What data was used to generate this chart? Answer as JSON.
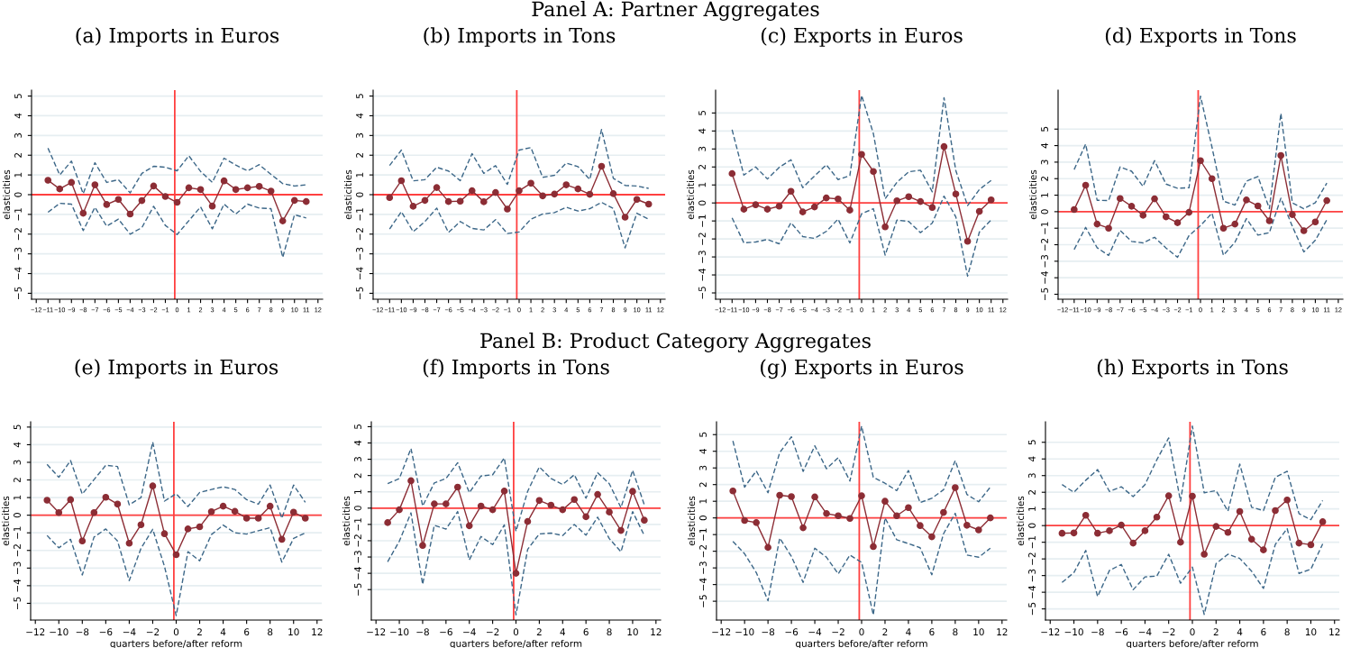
{
  "chart_data": [
    {
      "type": "line",
      "title": "(a) Imports in Euros",
      "ylabel": "elasticities",
      "annotations": [
        "Panel A: Partner Aggregates"
      ],
      "x": [
        -11,
        -10,
        -9,
        -8,
        -7,
        -6,
        -5,
        -4,
        -3,
        -2,
        -1,
        0,
        1,
        2,
        3,
        4,
        5,
        6,
        7,
        8,
        9,
        10,
        11
      ],
      "xlim": [
        -12.4,
        12.4
      ],
      "ylim": [
        -5.3,
        5.3
      ],
      "xticks": [
        -12,
        -11,
        -10,
        -9,
        -8,
        -7,
        -6,
        -5,
        -4,
        -3,
        -2,
        -1,
        0,
        1,
        2,
        3,
        4,
        5,
        6,
        7,
        8,
        9,
        10,
        11,
        12
      ],
      "yticks": [
        -5,
        -4,
        -3,
        -2,
        -1,
        0,
        1,
        2,
        3,
        4,
        5
      ],
      "grid": "y",
      "legend": false,
      "ref_lines": [
        {
          "axis": "x",
          "value": -0.2,
          "color": "#ff4040"
        },
        {
          "axis": "y",
          "value": 0,
          "color": "#ff4040"
        }
      ],
      "series": [
        {
          "color": "#3c6788",
          "line_style": "dashed",
          "marker": "none",
          "values": [
            2.36,
            1.0,
            1.7,
            0.05,
            1.62,
            0.62,
            0.76,
            0.09,
            1.08,
            1.44,
            1.39,
            1.21,
            1.97,
            1.18,
            0.62,
            1.85,
            1.5,
            1.21,
            1.52,
            1.03,
            0.56,
            0.44,
            0.5
          ]
        },
        {
          "color": "#3c6788",
          "line_style": "dashed",
          "marker": "none",
          "values": [
            -0.89,
            -0.44,
            -0.48,
            -1.82,
            -0.64,
            -1.6,
            -1.24,
            -2.0,
            -1.67,
            -0.59,
            -1.56,
            -2.02,
            -1.32,
            -0.62,
            -1.73,
            -0.48,
            -0.98,
            -0.48,
            -0.68,
            -0.71,
            -3.18,
            -1.02,
            -1.18
          ]
        },
        {
          "color": "#8c2d35",
          "line_style": "solid",
          "marker": "circle",
          "values": [
            0.73,
            0.29,
            0.62,
            -0.94,
            0.5,
            -0.5,
            -0.24,
            -0.98,
            -0.3,
            0.44,
            -0.09,
            -0.39,
            0.35,
            0.26,
            -0.58,
            0.7,
            0.26,
            0.35,
            0.42,
            0.18,
            -1.33,
            -0.29,
            -0.35
          ]
        }
      ]
    },
    {
      "type": "line",
      "title": "(b) Imports in Tons",
      "ylabel": "elasticities",
      "x": [
        -11,
        -10,
        -9,
        -8,
        -7,
        -6,
        -5,
        -4,
        -3,
        -2,
        -1,
        0,
        1,
        2,
        3,
        4,
        5,
        6,
        7,
        8,
        9,
        10,
        11
      ],
      "xlim": [
        -12.4,
        12.4
      ],
      "ylim": [
        -5.3,
        5.3
      ],
      "xticks": [
        -12,
        -11,
        -10,
        -9,
        -8,
        -7,
        -6,
        -5,
        -4,
        -3,
        -2,
        -1,
        0,
        1,
        2,
        3,
        4,
        5,
        6,
        7,
        8,
        9,
        10,
        11,
        12
      ],
      "yticks": [
        -5,
        -4,
        -3,
        -2,
        -1,
        0,
        1,
        2,
        3,
        4,
        5
      ],
      "grid": "y",
      "legend": false,
      "ref_lines": [
        {
          "axis": "x",
          "value": -0.2,
          "color": "#ff4040"
        },
        {
          "axis": "y",
          "value": 0,
          "color": "#ff4040"
        }
      ],
      "series": [
        {
          "color": "#3c6788",
          "line_style": "dashed",
          "marker": "none",
          "values": [
            1.48,
            2.26,
            0.7,
            0.76,
            1.39,
            1.2,
            0.71,
            2.08,
            1.08,
            1.47,
            0.52,
            2.26,
            2.39,
            0.88,
            0.98,
            1.6,
            1.42,
            0.77,
            3.3,
            0.83,
            0.47,
            0.44,
            0.32
          ]
        },
        {
          "color": "#3c6788",
          "line_style": "dashed",
          "marker": "none",
          "values": [
            -1.74,
            -0.86,
            -1.88,
            -1.36,
            -0.68,
            -1.92,
            -1.36,
            -1.71,
            -1.79,
            -1.27,
            -1.97,
            -1.89,
            -1.24,
            -0.98,
            -0.91,
            -0.64,
            -0.83,
            -0.71,
            -0.39,
            -0.7,
            -2.7,
            -0.94,
            -1.24
          ]
        },
        {
          "color": "#8c2d35",
          "line_style": "solid",
          "marker": "circle",
          "values": [
            -0.15,
            0.71,
            -0.59,
            -0.29,
            0.36,
            -0.35,
            -0.33,
            0.2,
            -0.36,
            0.11,
            -0.73,
            0.2,
            0.58,
            -0.06,
            0.03,
            0.5,
            0.29,
            0.02,
            1.44,
            0.05,
            -1.14,
            -0.24,
            -0.48
          ]
        }
      ]
    },
    {
      "type": "line",
      "title": "(c) Exports in Euros",
      "ylabel": "elasticities",
      "x": [
        -11,
        -10,
        -9,
        -8,
        -7,
        -6,
        -5,
        -4,
        -3,
        -2,
        -1,
        0,
        1,
        2,
        3,
        4,
        5,
        6,
        7,
        8,
        9,
        10,
        11
      ],
      "xlim": [
        -12.4,
        12.4
      ],
      "ylim": [
        -5.35,
        6.27
      ],
      "xticks": [
        -12,
        -11,
        -10,
        -9,
        -8,
        -7,
        -6,
        -5,
        -4,
        -3,
        -2,
        -1,
        0,
        1,
        2,
        3,
        4,
        5,
        6,
        7,
        8,
        9,
        10,
        11,
        12
      ],
      "yticks": [
        -5,
        -4,
        -3,
        -2,
        -1,
        0,
        1,
        2,
        3,
        4,
        5
      ],
      "grid": "y",
      "legend": false,
      "ref_lines": [
        {
          "axis": "x",
          "value": -0.2,
          "color": "#ff4040"
        },
        {
          "axis": "y",
          "value": 0,
          "color": "#ff4040"
        }
      ],
      "series": [
        {
          "color": "#3c6788",
          "line_style": "dashed",
          "marker": "none",
          "values": [
            4.07,
            1.55,
            2.0,
            1.33,
            1.98,
            2.4,
            0.85,
            1.5,
            2.12,
            1.3,
            1.52,
            5.98,
            3.85,
            0.23,
            1.15,
            1.73,
            1.82,
            0.62,
            5.85,
            1.8,
            -0.15,
            0.75,
            1.25
          ]
        },
        {
          "color": "#3c6788",
          "line_style": "dashed",
          "marker": "none",
          "values": [
            -0.83,
            -2.22,
            -2.17,
            -2.03,
            -2.27,
            -1.1,
            -1.87,
            -1.97,
            -1.58,
            -0.9,
            -2.22,
            -0.6,
            -0.32,
            -2.9,
            -0.95,
            -1.03,
            -1.65,
            -1.12,
            0.38,
            -0.77,
            -4.07,
            -1.62,
            -0.95
          ]
        },
        {
          "color": "#8c2d35",
          "line_style": "solid",
          "marker": "circle",
          "values": [
            1.63,
            -0.35,
            -0.1,
            -0.35,
            -0.18,
            0.65,
            -0.5,
            -0.22,
            0.28,
            0.22,
            -0.4,
            2.7,
            1.75,
            -1.33,
            0.12,
            0.35,
            0.08,
            -0.25,
            3.13,
            0.5,
            -2.13,
            -0.47,
            0.17
          ]
        }
      ]
    },
    {
      "type": "line",
      "title": "(d) Exports in Tons",
      "ylabel": "elasticities",
      "x": [
        -11,
        -10,
        -9,
        -8,
        -7,
        -6,
        -5,
        -4,
        -3,
        -2,
        -1,
        0,
        1,
        2,
        3,
        4,
        5,
        6,
        7,
        8,
        9,
        10,
        11
      ],
      "xlim": [
        -12.4,
        12.4
      ],
      "ylim": [
        -5.3,
        7.36
      ],
      "xticks": [
        -12,
        -11,
        -10,
        -9,
        -8,
        -7,
        -6,
        -5,
        -4,
        -3,
        -2,
        -1,
        0,
        1,
        2,
        3,
        4,
        5,
        6,
        7,
        8,
        9,
        10,
        11,
        12
      ],
      "yticks": [
        -5,
        -4,
        -3,
        -2,
        -1,
        0,
        1,
        2,
        3,
        4,
        5
      ],
      "grid": "y",
      "legend": false,
      "ref_lines": [
        {
          "axis": "x",
          "value": -0.2,
          "color": "#ff4040"
        },
        {
          "axis": "y",
          "value": 0,
          "color": "#ff4040"
        }
      ],
      "series": [
        {
          "color": "#3c6788",
          "line_style": "dashed",
          "marker": "none",
          "values": [
            2.55,
            4.09,
            0.69,
            0.67,
            2.71,
            2.45,
            1.53,
            3.09,
            1.67,
            1.42,
            1.45,
            7.0,
            3.91,
            0.64,
            0.4,
            1.85,
            2.13,
            0.18,
            5.95,
            0.53,
            0.18,
            0.55,
            1.73
          ]
        },
        {
          "color": "#3c6788",
          "line_style": "dashed",
          "marker": "none",
          "values": [
            -2.29,
            -0.95,
            -2.18,
            -2.65,
            -1.13,
            -1.8,
            -1.89,
            -1.55,
            -2.2,
            -2.76,
            -1.45,
            -0.84,
            -0.09,
            -2.64,
            -1.85,
            -0.42,
            -1.42,
            -1.27,
            0.82,
            -0.89,
            -2.44,
            -1.73,
            -0.49
          ]
        },
        {
          "color": "#8c2d35",
          "line_style": "solid",
          "marker": "circle",
          "values": [
            0.13,
            1.6,
            -0.75,
            -1.0,
            0.8,
            0.33,
            -0.22,
            0.78,
            -0.31,
            -0.67,
            -0.04,
            3.09,
            2.0,
            -1.0,
            -0.75,
            0.71,
            0.35,
            -0.55,
            3.4,
            -0.18,
            -1.15,
            -0.62,
            0.67
          ]
        }
      ]
    },
    {
      "type": "line",
      "title": "(e) Imports in Euros",
      "xlabel": "quarters before/after reform",
      "ylabel": "elasticities",
      "annotations": [
        "Panel B: Product Category Aggregates"
      ],
      "x": [
        -11,
        -10,
        -9,
        -8,
        -7,
        -6,
        -5,
        -4,
        -3,
        -2,
        -1,
        0,
        1,
        2,
        3,
        4,
        5,
        6,
        7,
        8,
        9,
        10,
        11
      ],
      "xlim": [
        -12.4,
        12.4
      ],
      "ylim": [
        -5.95,
        5.3
      ],
      "xticks": [
        -12,
        -10,
        -8,
        -6,
        -4,
        -2,
        0,
        2,
        4,
        6,
        8,
        10,
        12
      ],
      "yticks": [
        -5,
        -4,
        -3,
        -2,
        -1,
        0,
        1,
        2,
        3,
        4,
        5
      ],
      "grid": "y",
      "legend": false,
      "ref_lines": [
        {
          "axis": "x",
          "value": -0.2,
          "color": "#ff4040"
        },
        {
          "axis": "y",
          "value": 0,
          "color": "#ff4040"
        }
      ],
      "series": [
        {
          "color": "#3c6788",
          "line_style": "dashed",
          "marker": "none",
          "values": [
            2.88,
            2.15,
            3.1,
            1.2,
            2.02,
            2.83,
            2.76,
            0.59,
            1.0,
            4.15,
            0.8,
            1.22,
            0.49,
            1.29,
            1.46,
            1.61,
            1.46,
            0.88,
            0.63,
            1.71,
            -0.17,
            1.71,
            0.73
          ]
        },
        {
          "color": "#3c6788",
          "line_style": "dashed",
          "marker": "none",
          "values": [
            -1.15,
            -1.85,
            -1.37,
            -3.39,
            -1.24,
            -0.78,
            -1.46,
            -3.71,
            -1.88,
            -0.8,
            -2.9,
            -5.7,
            -2.07,
            -2.59,
            -1.1,
            -0.56,
            -1.0,
            -1.07,
            -0.88,
            -0.71,
            -2.66,
            -1.32,
            -1.0
          ]
        },
        {
          "color": "#8c2d35",
          "line_style": "solid",
          "marker": "circle",
          "values": [
            0.85,
            0.15,
            0.88,
            -1.46,
            0.15,
            1.02,
            0.63,
            -1.59,
            -0.54,
            1.66,
            -1.05,
            -2.24,
            -0.78,
            -0.66,
            0.2,
            0.51,
            0.22,
            -0.17,
            -0.17,
            0.51,
            -1.37,
            0.17,
            -0.17
          ]
        }
      ]
    },
    {
      "type": "line",
      "title": "(f) Imports in Tons",
      "xlabel": "quarters before/after reform",
      "ylabel": "elasticities",
      "x": [
        -11,
        -10,
        -9,
        -8,
        -7,
        -6,
        -5,
        -4,
        -3,
        -2,
        -1,
        0,
        1,
        2,
        3,
        4,
        5,
        6,
        7,
        8,
        9,
        10,
        11
      ],
      "xlim": [
        -12.4,
        12.4
      ],
      "ylim": [
        -6.87,
        5.3
      ],
      "xticks": [
        -12,
        -10,
        -8,
        -6,
        -4,
        -2,
        0,
        2,
        4,
        6,
        8,
        10,
        12
      ],
      "yticks": [
        -5,
        -4,
        -3,
        -2,
        -1,
        0,
        1,
        2,
        3,
        4,
        5
      ],
      "grid": "y",
      "legend": false,
      "ref_lines": [
        {
          "axis": "x",
          "value": -0.2,
          "color": "#ff4040"
        },
        {
          "axis": "y",
          "value": 0,
          "color": "#ff4040"
        }
      ],
      "series": [
        {
          "color": "#3c6788",
          "line_style": "dashed",
          "marker": "none",
          "values": [
            1.5,
            1.82,
            3.66,
            0.13,
            1.55,
            1.82,
            2.79,
            0.95,
            1.97,
            2.05,
            3.08,
            -1.42,
            1.03,
            2.53,
            1.82,
            1.45,
            2.05,
            0.61,
            2.18,
            1.5,
            0.03,
            2.32,
            0.21
          ]
        },
        {
          "color": "#3c6788",
          "line_style": "dashed",
          "marker": "none",
          "values": [
            -3.29,
            -2.03,
            -0.29,
            -4.68,
            -1.05,
            -1.29,
            -0.21,
            -3.18,
            -1.74,
            -2.24,
            -1.03,
            -6.55,
            -2.53,
            -1.58,
            -1.53,
            -1.68,
            -1.0,
            -1.66,
            -0.55,
            -1.87,
            -2.68,
            -0.21,
            -1.68
          ]
        },
        {
          "color": "#8c2d35",
          "line_style": "solid",
          "marker": "circle",
          "values": [
            -0.89,
            -0.1,
            1.68,
            -2.29,
            0.26,
            0.26,
            1.29,
            -1.08,
            0.13,
            -0.1,
            1.05,
            -4.0,
            -0.82,
            0.47,
            0.18,
            -0.1,
            0.53,
            -0.53,
            0.84,
            -0.24,
            -1.37,
            1.03,
            -0.74
          ]
        }
      ]
    },
    {
      "type": "line",
      "title": "(g) Exports in Euros",
      "xlabel": "quarters before/after reform",
      "ylabel": "elasticities",
      "x": [
        -11,
        -10,
        -9,
        -8,
        -7,
        -6,
        -5,
        -4,
        -3,
        -2,
        -1,
        0,
        1,
        2,
        3,
        4,
        5,
        6,
        7,
        8,
        9,
        10,
        11
      ],
      "xlim": [
        -12.4,
        12.4
      ],
      "ylim": [
        -6.13,
        5.77
      ],
      "xticks": [
        -12,
        -10,
        -8,
        -6,
        -4,
        -2,
        0,
        2,
        4,
        6,
        8,
        10,
        12
      ],
      "yticks": [
        -5,
        -4,
        -3,
        -2,
        -1,
        0,
        1,
        2,
        3,
        4,
        5
      ],
      "grid": "y",
      "legend": false,
      "ref_lines": [
        {
          "axis": "x",
          "value": -0.2,
          "color": "#ff4040"
        },
        {
          "axis": "y",
          "value": 0,
          "color": "#ff4040"
        }
      ],
      "series": [
        {
          "color": "#3c6788",
          "line_style": "dashed",
          "marker": "none",
          "values": [
            4.62,
            1.85,
            2.82,
            1.51,
            3.92,
            4.87,
            2.79,
            4.33,
            2.95,
            3.62,
            2.21,
            5.51,
            2.44,
            2.08,
            1.64,
            2.85,
            0.92,
            1.18,
            1.69,
            3.44,
            1.41,
            0.97,
            1.85
          ]
        },
        {
          "color": "#3c6788",
          "line_style": "dashed",
          "marker": "none",
          "values": [
            -1.41,
            -2.15,
            -3.28,
            -4.97,
            -1.21,
            -2.31,
            -3.87,
            -1.82,
            -2.36,
            -3.36,
            -2.23,
            -2.67,
            -5.82,
            0.0,
            -1.31,
            -1.54,
            -1.79,
            -3.41,
            -0.95,
            0.28,
            -2.23,
            -2.36,
            -1.82
          ]
        },
        {
          "color": "#8c2d35",
          "line_style": "solid",
          "marker": "circle",
          "values": [
            1.62,
            -0.15,
            -0.28,
            -1.77,
            1.36,
            1.28,
            -0.59,
            1.26,
            0.26,
            0.13,
            -0.03,
            1.33,
            -1.72,
            1.0,
            0.13,
            0.62,
            -0.46,
            -1.13,
            0.33,
            1.82,
            -0.44,
            -0.72,
            0.0
          ]
        }
      ]
    },
    {
      "type": "line",
      "title": "(h) Exports in Tons",
      "xlabel": "quarters before/after reform",
      "ylabel": "elasticities",
      "x": [
        -11,
        -10,
        -9,
        -8,
        -7,
        -6,
        -5,
        -4,
        -3,
        -2,
        -1,
        0,
        1,
        2,
        3,
        4,
        5,
        6,
        7,
        8,
        9,
        10,
        11
      ],
      "xlim": [
        -12.4,
        12.4
      ],
      "ylim": [
        -5.67,
        6.23
      ],
      "xticks": [
        -12,
        -10,
        -8,
        -6,
        -4,
        -2,
        0,
        2,
        4,
        6,
        8,
        10,
        12
      ],
      "yticks": [
        -5,
        -4,
        -3,
        -2,
        -1,
        0,
        1,
        2,
        3,
        4,
        5
      ],
      "grid": "y",
      "legend": false,
      "ref_lines": [
        {
          "axis": "x",
          "value": -0.2,
          "color": "#ff4040"
        },
        {
          "axis": "y",
          "value": 0,
          "color": "#ff4040"
        }
      ],
      "series": [
        {
          "color": "#3c6788",
          "line_style": "dashed",
          "marker": "none",
          "values": [
            2.46,
            2.0,
            2.72,
            3.36,
            2.05,
            2.33,
            1.74,
            2.46,
            3.95,
            5.26,
            1.46,
            5.97,
            1.97,
            2.1,
            0.87,
            3.69,
            1.1,
            0.9,
            2.9,
            3.26,
            0.72,
            0.36,
            1.51
          ]
        },
        {
          "color": "#3c6788",
          "line_style": "dashed",
          "marker": "none",
          "values": [
            -3.41,
            -2.82,
            -1.49,
            -4.26,
            -2.69,
            -2.33,
            -3.85,
            -3.08,
            -3.03,
            -1.72,
            -3.46,
            -2.49,
            -5.33,
            -2.28,
            -1.72,
            -1.97,
            -2.74,
            -3.77,
            -1.13,
            -0.18,
            -2.87,
            -2.62,
            -1.1
          ]
        },
        {
          "color": "#8c2d35",
          "line_style": "solid",
          "marker": "circle",
          "values": [
            -0.46,
            -0.44,
            0.62,
            -0.46,
            -0.31,
            0.03,
            -1.05,
            -0.31,
            0.51,
            1.79,
            -1.0,
            1.77,
            -1.72,
            -0.05,
            -0.41,
            0.85,
            -0.82,
            -1.46,
            0.9,
            1.54,
            -1.05,
            -1.15,
            0.23
          ]
        }
      ]
    }
  ]
}
